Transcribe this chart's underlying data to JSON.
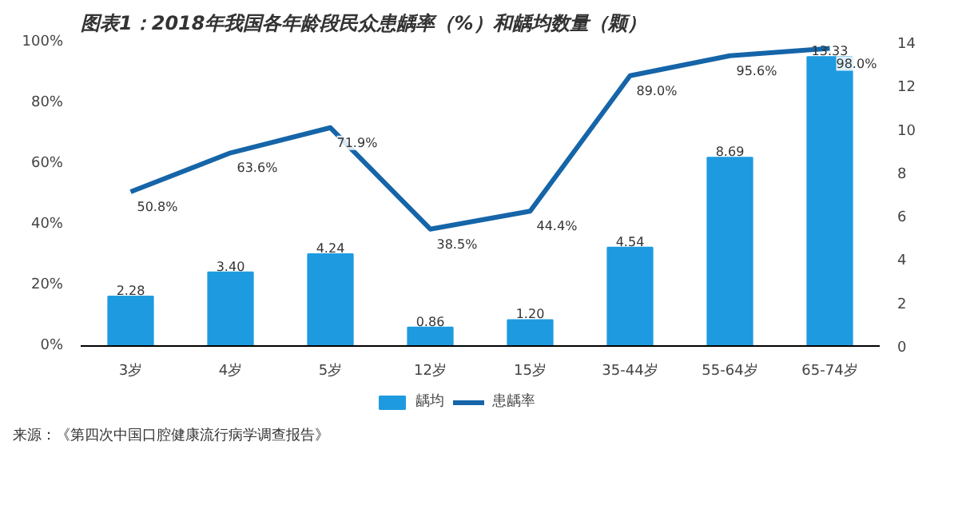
{
  "chart_data": {
    "type": "bar",
    "title": "图表1：2018年我国各年龄段民众患龋率（%）和龋均数量（颗）",
    "categories": [
      "3岁",
      "4岁",
      "5岁",
      "12岁",
      "15岁",
      "35-44岁",
      "55-64岁",
      "65-74岁"
    ],
    "series": [
      {
        "name": "龋均",
        "axis": "y2",
        "color": "#1e9be0",
        "values": [
          2.28,
          3.4,
          4.24,
          0.86,
          1.2,
          4.54,
          8.69,
          13.33
        ],
        "value_labels": [
          "2.28",
          "3.40",
          "4.24",
          "0.86",
          "1.20",
          "4.54",
          "8.69",
          "13.33"
        ]
      },
      {
        "name": "患龋率",
        "type": "line",
        "axis": "y",
        "color": "#1565a8",
        "values": [
          50.8,
          63.6,
          71.9,
          38.5,
          44.4,
          89.0,
          95.6,
          98.0
        ],
        "value_labels": [
          "50.8%",
          "63.6%",
          "71.9%",
          "38.5%",
          "44.4%",
          "89.0%",
          "95.6%",
          "98.0%"
        ]
      }
    ],
    "ylim": [
      0,
      100
    ],
    "yticks": [
      {
        "value": 0,
        "label": "0%"
      },
      {
        "value": 20,
        "label": "20%"
      },
      {
        "value": 40,
        "label": "40%"
      },
      {
        "value": 60,
        "label": "60%"
      },
      {
        "value": 80,
        "label": "80%"
      },
      {
        "value": 100,
        "label": "100%"
      }
    ],
    "y2lim": [
      0,
      14
    ],
    "y2ticks": [
      0,
      2,
      4,
      6,
      8,
      10,
      12,
      14
    ],
    "grid": false,
    "legend": "bottom",
    "annotations": [
      "来源：《第四次中国口腔健康流行病学调查报告》"
    ]
  }
}
